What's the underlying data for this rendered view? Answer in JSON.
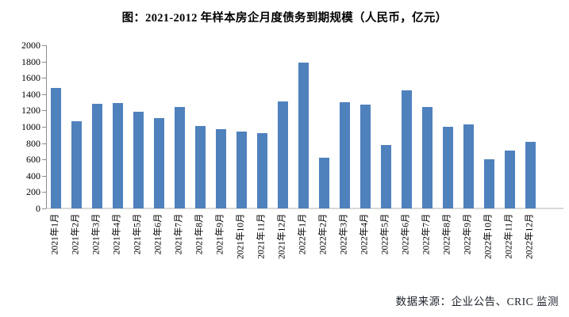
{
  "chart_data": {
    "type": "bar",
    "title": "图：2021-2012 年样本房企月度债务到期规模（人民币，亿元）",
    "categories": [
      "2021年1月",
      "2021年2月",
      "2021年3月",
      "2021年4月",
      "2021年5月",
      "2021年6月",
      "2021年7月",
      "2021年8月",
      "2021年9月",
      "2021年10月",
      "2021年11月",
      "2021年12月",
      "2022年1月",
      "2022年2月",
      "2022年3月",
      "2022年4月",
      "2022年5月",
      "2022年6月",
      "2022年7月",
      "2022年8月",
      "2022年9月",
      "2022年10月",
      "2022年11月",
      "2022年12月"
    ],
    "values": [
      1480,
      1070,
      1280,
      1295,
      1180,
      1110,
      1245,
      1010,
      970,
      940,
      920,
      1310,
      1790,
      620,
      1300,
      1270,
      775,
      1445,
      1240,
      1000,
      1025,
      600,
      705,
      820
    ],
    "xlabel": "",
    "ylabel": "",
    "ylim": [
      0,
      2000
    ],
    "ytick_step": 200,
    "yticks": [
      0,
      200,
      400,
      600,
      800,
      1000,
      1200,
      1400,
      1600,
      1800,
      2000
    ],
    "grid": false,
    "legend": false,
    "bar_color": "#4F81BD",
    "axis_color": "#8c8c8c",
    "baseline_color": "#d9d9d9",
    "tick_label_color": "#000000"
  },
  "source_note": {
    "text": "数据来源：企业公告、CRIC 监测",
    "color": "#20242e"
  }
}
